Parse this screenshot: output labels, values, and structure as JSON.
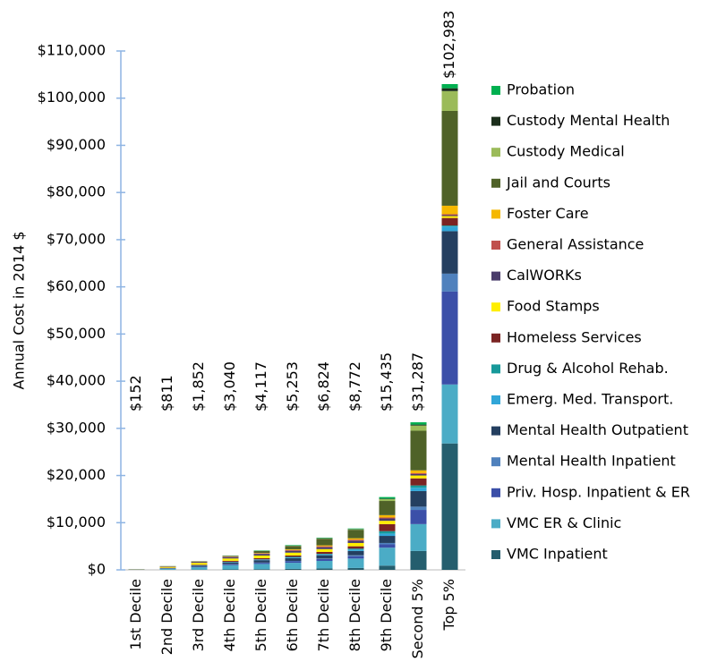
{
  "chart_data": {
    "type": "stacked_bar",
    "ylabel": "Annual Cost in 2014 $",
    "categories": [
      "1st Decile",
      "2nd Decile",
      "3rd Decile",
      "4th Decile",
      "5th Decile",
      "6th Decile",
      "7th Decile",
      "8th Decile",
      "9th Decile",
      "Second 5%",
      "Top 5%"
    ],
    "series": [
      {
        "name": "VMC Inpatient",
        "color": "#255e6e",
        "values": [
          5,
          20,
          50,
          100,
          150,
          200,
          300,
          400,
          900,
          4000,
          26800
        ]
      },
      {
        "name": "VMC ER & Clinic",
        "color": "#4bacc6",
        "values": [
          40,
          200,
          500,
          900,
          1100,
          1300,
          1600,
          2000,
          3800,
          5700,
          12500
        ]
      },
      {
        "name": "Priv. Hosp. Inpatient & ER",
        "color": "#3b4fa8",
        "values": [
          10,
          50,
          120,
          200,
          250,
          300,
          400,
          500,
          700,
          3000,
          19700
        ]
      },
      {
        "name": "Mental Health Inpatient",
        "color": "#4f81bd",
        "values": [
          2,
          10,
          20,
          40,
          50,
          100,
          100,
          200,
          300,
          700,
          3800
        ]
      },
      {
        "name": "Mental Health Outpatient",
        "color": "#243f60",
        "values": [
          15,
          80,
          200,
          350,
          500,
          600,
          700,
          900,
          1500,
          3300,
          9000
        ]
      },
      {
        "name": "Emerg. Med. Transport.",
        "color": "#31a6d8",
        "values": [
          5,
          20,
          50,
          80,
          100,
          150,
          200,
          300,
          500,
          700,
          1000
        ]
      },
      {
        "name": "Drug & Alcohol Rehab.",
        "color": "#17999a",
        "values": [
          2,
          10,
          30,
          50,
          80,
          100,
          100,
          200,
          500,
          500,
          200
        ]
      },
      {
        "name": "Homeless Services",
        "color": "#7b2423",
        "values": [
          10,
          50,
          120,
          200,
          250,
          300,
          400,
          500,
          1500,
          1500,
          1600
        ]
      },
      {
        "name": "Food Stamps",
        "color": "#ffee00",
        "values": [
          30,
          200,
          400,
          500,
          550,
          600,
          600,
          700,
          700,
          600,
          400
        ]
      },
      {
        "name": "CalWORKs",
        "color": "#4a3c6b",
        "values": [
          15,
          100,
          200,
          300,
          350,
          400,
          400,
          500,
          500,
          300,
          200
        ]
      },
      {
        "name": "General Assistance",
        "color": "#c0504d",
        "values": [
          5,
          20,
          50,
          80,
          100,
          150,
          200,
          200,
          200,
          200,
          200
        ]
      },
      {
        "name": "Foster Care",
        "color": "#f5b800",
        "values": [
          3,
          10,
          30,
          60,
          100,
          150,
          200,
          300,
          500,
          600,
          1800
        ]
      },
      {
        "name": "Jail and Courts",
        "color": "#4f6228",
        "values": [
          5,
          20,
          50,
          120,
          400,
          700,
          1400,
          1800,
          3000,
          8400,
          20100
        ]
      },
      {
        "name": "Custody Medical",
        "color": "#9bbb59",
        "values": [
          1,
          5,
          10,
          20,
          40,
          60,
          80,
          100,
          400,
          1100,
          4200
        ]
      },
      {
        "name": "Custody Mental Health",
        "color": "#1b2e1b",
        "values": [
          1,
          2,
          5,
          10,
          20,
          30,
          40,
          50,
          100,
          200,
          600
        ]
      },
      {
        "name": "Probation",
        "color": "#00b050",
        "values": [
          3,
          14,
          17,
          30,
          77,
          113,
          104,
          122,
          335,
          487,
          883
        ]
      }
    ],
    "totals": [
      152,
      811,
      1852,
      3040,
      4117,
      5253,
      6824,
      8772,
      15435,
      31287,
      102983
    ],
    "total_labels": [
      "$152",
      "$811",
      "$1,852",
      "$3,040",
      "$4,117",
      "$5,253",
      "$6,824",
      "$8,772",
      "$15,435",
      "$31,287",
      "$102,983"
    ],
    "ylim": [
      0,
      110000
    ],
    "yticks": [
      {
        "value": 0,
        "label": "$0"
      },
      {
        "value": 10000,
        "label": "$10,000"
      },
      {
        "value": 20000,
        "label": "$20,000"
      },
      {
        "value": 30000,
        "label": "$30,000"
      },
      {
        "value": 40000,
        "label": "$40,000"
      },
      {
        "value": 50000,
        "label": "$50,000"
      },
      {
        "value": 60000,
        "label": "$60,000"
      },
      {
        "value": 70000,
        "label": "$70,000"
      },
      {
        "value": 80000,
        "label": "$80,000"
      },
      {
        "value": 90000,
        "label": "$90,000"
      },
      {
        "value": 100000,
        "label": "$100,000"
      },
      {
        "value": 110000,
        "label": "$110,000"
      }
    ],
    "legend": "right"
  }
}
